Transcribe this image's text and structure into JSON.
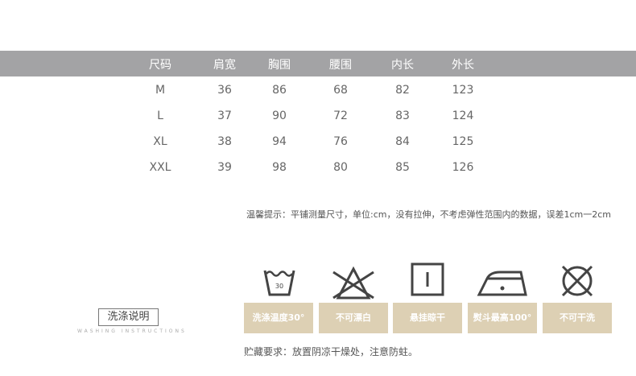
{
  "size_table": {
    "headers": [
      "尺码",
      "肩宽",
      "胸围",
      "腰围",
      "内长",
      "外长"
    ],
    "rows": [
      [
        "M",
        "36",
        "86",
        "68",
        "82",
        "123"
      ],
      [
        "L",
        "37",
        "90",
        "72",
        "83",
        "124"
      ],
      [
        "XL",
        "38",
        "94",
        "76",
        "84",
        "125"
      ],
      [
        "XXL",
        "39",
        "98",
        "80",
        "85",
        "126"
      ]
    ]
  },
  "note": "温馨提示：平铺测量尺寸，单位:cm，没有拉伸，不考虑弹性范围内的数据，误差1cm一2cm",
  "washing": {
    "title": "洗涤说明",
    "subtitle": "WASHING INSTRUCTIONS",
    "items": [
      {
        "icon": "wash-30-icon",
        "temp": "30",
        "label": "洗涤温度30°"
      },
      {
        "icon": "no-bleach-icon",
        "label": "不可漂白"
      },
      {
        "icon": "line-dry-icon",
        "label": "悬挂晾干"
      },
      {
        "icon": "iron-icon",
        "label": "熨斗最高100°"
      },
      {
        "icon": "no-dry-clean-icon",
        "label": "不可干洗"
      }
    ],
    "label_color": "#ddd0b4"
  },
  "storage": "贮藏要求：放置阴凉干燥处，注意防蛀。"
}
